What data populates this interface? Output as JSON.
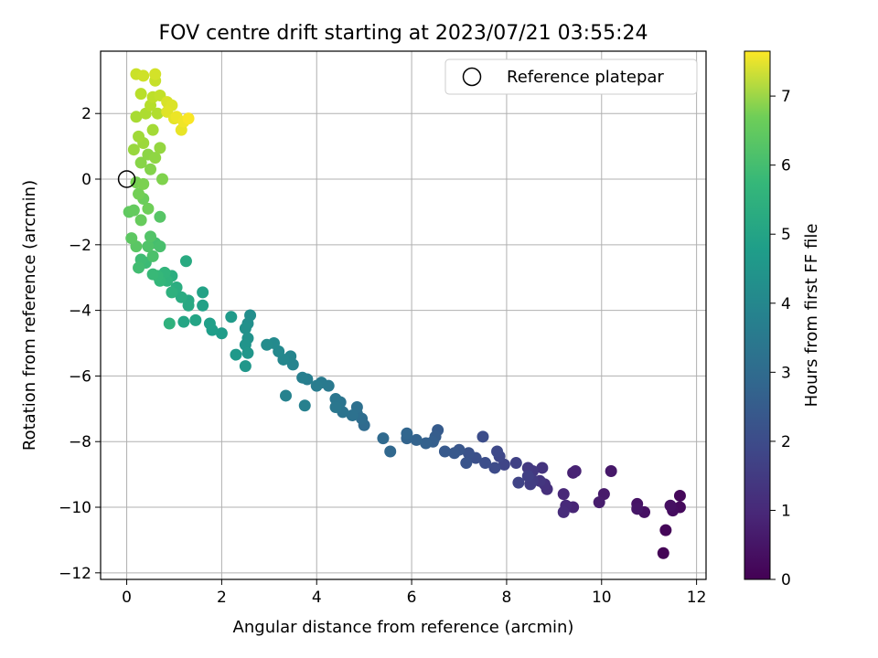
{
  "chart_data": {
    "type": "scatter",
    "title": "FOV centre drift starting at 2023/07/21 03:55:24",
    "xlabel": "Angular distance from reference (arcmin)",
    "ylabel": "Rotation from reference (arcmin)",
    "xlim": [
      -0.55,
      12.2
    ],
    "ylim": [
      -12.2,
      3.9
    ],
    "xticks": [
      0,
      2,
      4,
      6,
      8,
      10,
      12
    ],
    "yticks": [
      -12,
      -10,
      -8,
      -6,
      -4,
      -2,
      0,
      2
    ],
    "grid": true,
    "legend": {
      "placement": "top-right",
      "entries": [
        "Reference platepar"
      ]
    },
    "reference_point": {
      "x": 0,
      "y": 0
    },
    "colorbar": {
      "label": "Hours from first FF file",
      "range": [
        0,
        7.65
      ],
      "ticks": [
        0,
        1,
        2,
        3,
        4,
        5,
        6,
        7
      ],
      "colormap": "viridis"
    },
    "color_value_label": "Hours from first FF file",
    "points": [
      [
        11.3,
        -11.4,
        0.05
      ],
      [
        11.35,
        -10.7,
        0.1
      ],
      [
        11.65,
        -9.65,
        0.15
      ],
      [
        11.65,
        -10.0,
        0.2
      ],
      [
        11.5,
        -10.1,
        0.25
      ],
      [
        11.45,
        -9.95,
        0.3
      ],
      [
        10.9,
        -10.15,
        0.35
      ],
      [
        10.75,
        -9.9,
        0.4
      ],
      [
        10.75,
        -10.05,
        0.45
      ],
      [
        10.2,
        -8.9,
        0.5
      ],
      [
        10.05,
        -9.6,
        0.55
      ],
      [
        9.95,
        -9.85,
        0.6
      ],
      [
        9.4,
        -8.95,
        0.7
      ],
      [
        9.45,
        -8.9,
        0.75
      ],
      [
        9.4,
        -10.0,
        0.8
      ],
      [
        9.2,
        -9.6,
        0.85
      ],
      [
        9.25,
        -9.95,
        0.9
      ],
      [
        9.2,
        -10.15,
        0.95
      ],
      [
        8.85,
        -9.45,
        1.05
      ],
      [
        8.8,
        -9.3,
        1.1
      ],
      [
        8.75,
        -8.8,
        1.15
      ],
      [
        8.7,
        -9.2,
        1.2
      ],
      [
        8.55,
        -8.9,
        1.25
      ],
      [
        8.45,
        -8.8,
        1.3
      ],
      [
        8.55,
        -9.2,
        1.35
      ],
      [
        8.5,
        -9.3,
        1.4
      ],
      [
        8.45,
        -9.05,
        1.45
      ],
      [
        8.2,
        -8.65,
        1.5
      ],
      [
        8.25,
        -9.25,
        1.55
      ],
      [
        7.95,
        -8.7,
        1.6
      ],
      [
        7.85,
        -8.45,
        1.65
      ],
      [
        7.8,
        -8.3,
        1.7
      ],
      [
        7.75,
        -8.8,
        1.75
      ],
      [
        7.5,
        -7.85,
        1.8
      ],
      [
        7.55,
        -8.65,
        1.85
      ],
      [
        7.35,
        -8.5,
        1.9
      ],
      [
        7.2,
        -8.35,
        1.95
      ],
      [
        7.15,
        -8.65,
        2.0
      ],
      [
        7.0,
        -8.25,
        2.05
      ],
      [
        6.9,
        -8.35,
        2.1
      ],
      [
        6.7,
        -8.3,
        2.15
      ],
      [
        6.55,
        -7.65,
        2.2
      ],
      [
        6.5,
        -7.85,
        2.25
      ],
      [
        6.45,
        -8.0,
        2.3
      ],
      [
        6.3,
        -8.05,
        2.35
      ],
      [
        6.1,
        -7.95,
        2.4
      ],
      [
        5.9,
        -7.9,
        2.45
      ],
      [
        5.9,
        -7.75,
        2.5
      ],
      [
        5.55,
        -8.3,
        2.55
      ],
      [
        5.4,
        -7.9,
        2.6
      ],
      [
        5.0,
        -7.5,
        2.65
      ],
      [
        4.95,
        -7.3,
        2.7
      ],
      [
        4.85,
        -7.15,
        2.75
      ],
      [
        4.85,
        -6.95,
        2.8
      ],
      [
        4.75,
        -7.2,
        2.85
      ],
      [
        4.55,
        -7.1,
        2.9
      ],
      [
        4.5,
        -6.8,
        2.95
      ],
      [
        4.4,
        -6.7,
        3.0
      ],
      [
        4.4,
        -6.95,
        3.05
      ],
      [
        4.25,
        -6.3,
        3.1
      ],
      [
        4.1,
        -6.2,
        3.15
      ],
      [
        4.0,
        -6.3,
        3.2
      ],
      [
        3.8,
        -6.1,
        3.25
      ],
      [
        3.7,
        -6.05,
        3.3
      ],
      [
        3.75,
        -6.9,
        3.35
      ],
      [
        3.35,
        -6.6,
        3.4
      ],
      [
        3.5,
        -5.65,
        3.45
      ],
      [
        3.45,
        -5.4,
        3.5
      ],
      [
        3.3,
        -5.5,
        3.55
      ],
      [
        3.2,
        -5.25,
        3.6
      ],
      [
        3.1,
        -5.0,
        3.65
      ],
      [
        2.95,
        -5.05,
        3.7
      ],
      [
        2.6,
        -4.15,
        3.75
      ],
      [
        2.55,
        -4.4,
        3.8
      ],
      [
        2.5,
        -4.55,
        3.85
      ],
      [
        2.55,
        -4.85,
        3.9
      ],
      [
        2.5,
        -5.05,
        3.95
      ],
      [
        2.55,
        -5.3,
        4.0
      ],
      [
        2.5,
        -5.7,
        4.05
      ],
      [
        2.3,
        -5.35,
        4.1
      ],
      [
        2.2,
        -4.2,
        4.15
      ],
      [
        2.0,
        -4.7,
        4.2
      ],
      [
        1.8,
        -4.6,
        4.25
      ],
      [
        1.75,
        -4.4,
        4.3
      ],
      [
        1.6,
        -3.85,
        4.35
      ],
      [
        1.6,
        -3.45,
        4.4
      ],
      [
        1.45,
        -4.3,
        4.45
      ],
      [
        1.2,
        -4.35,
        4.5
      ],
      [
        1.3,
        -3.7,
        4.55
      ],
      [
        1.3,
        -3.85,
        4.6
      ],
      [
        1.25,
        -2.5,
        4.65
      ],
      [
        1.15,
        -3.6,
        4.7
      ],
      [
        1.05,
        -3.3,
        4.75
      ],
      [
        0.95,
        -2.95,
        4.8
      ],
      [
        0.95,
        -3.45,
        4.85
      ],
      [
        0.9,
        -4.4,
        4.9
      ],
      [
        0.85,
        -3.1,
        4.95
      ],
      [
        0.8,
        -2.85,
        5.0
      ],
      [
        0.7,
        -3.1,
        5.05
      ],
      [
        0.65,
        -2.95,
        5.1
      ],
      [
        0.55,
        -2.9,
        5.15
      ],
      [
        0.4,
        -2.55,
        5.2
      ],
      [
        0.3,
        -2.45,
        5.25
      ],
      [
        0.25,
        -2.7,
        5.3
      ],
      [
        0.6,
        -1.95,
        5.35
      ],
      [
        0.7,
        -2.05,
        5.4
      ],
      [
        0.55,
        -2.35,
        5.45
      ],
      [
        0.45,
        -2.05,
        5.5
      ],
      [
        0.5,
        -1.75,
        5.55
      ],
      [
        0.7,
        -1.15,
        5.6
      ],
      [
        0.2,
        -2.05,
        5.65
      ],
      [
        0.1,
        -1.8,
        5.7
      ],
      [
        0.05,
        -1.0,
        5.75
      ],
      [
        0.15,
        -0.95,
        5.8
      ],
      [
        0.3,
        -1.25,
        5.85
      ],
      [
        0.35,
        -0.6,
        5.9
      ],
      [
        0.45,
        -0.9,
        5.95
      ],
      [
        0.25,
        -0.45,
        6.0
      ],
      [
        0.2,
        -0.1,
        6.05
      ],
      [
        0.35,
        -0.15,
        6.1
      ],
      [
        0.75,
        0.0,
        6.15
      ],
      [
        0.5,
        0.3,
        6.2
      ],
      [
        0.3,
        0.5,
        6.25
      ],
      [
        0.45,
        0.75,
        6.3
      ],
      [
        0.6,
        0.65,
        6.35
      ],
      [
        0.7,
        0.95,
        6.4
      ],
      [
        0.15,
        0.9,
        6.45
      ],
      [
        0.35,
        1.1,
        6.5
      ],
      [
        0.25,
        1.3,
        6.55
      ],
      [
        0.55,
        1.5,
        6.6
      ],
      [
        0.2,
        1.9,
        6.65
      ],
      [
        0.4,
        2.0,
        6.7
      ],
      [
        0.65,
        2.0,
        6.75
      ],
      [
        0.5,
        2.25,
        6.8
      ],
      [
        0.3,
        2.6,
        6.85
      ],
      [
        0.55,
        2.5,
        6.9
      ],
      [
        0.7,
        2.55,
        6.95
      ],
      [
        0.6,
        3.0,
        7.0
      ],
      [
        0.2,
        3.2,
        7.05
      ],
      [
        0.35,
        3.15,
        7.1
      ],
      [
        0.6,
        3.2,
        7.15
      ],
      [
        0.85,
        2.35,
        7.2
      ],
      [
        0.95,
        2.25,
        7.25
      ],
      [
        0.85,
        2.05,
        7.3
      ],
      [
        1.0,
        1.85,
        7.35
      ],
      [
        1.15,
        1.5,
        7.4
      ],
      [
        1.05,
        1.9,
        7.45
      ],
      [
        1.2,
        1.75,
        7.5
      ],
      [
        1.3,
        1.85,
        7.6
      ]
    ]
  }
}
